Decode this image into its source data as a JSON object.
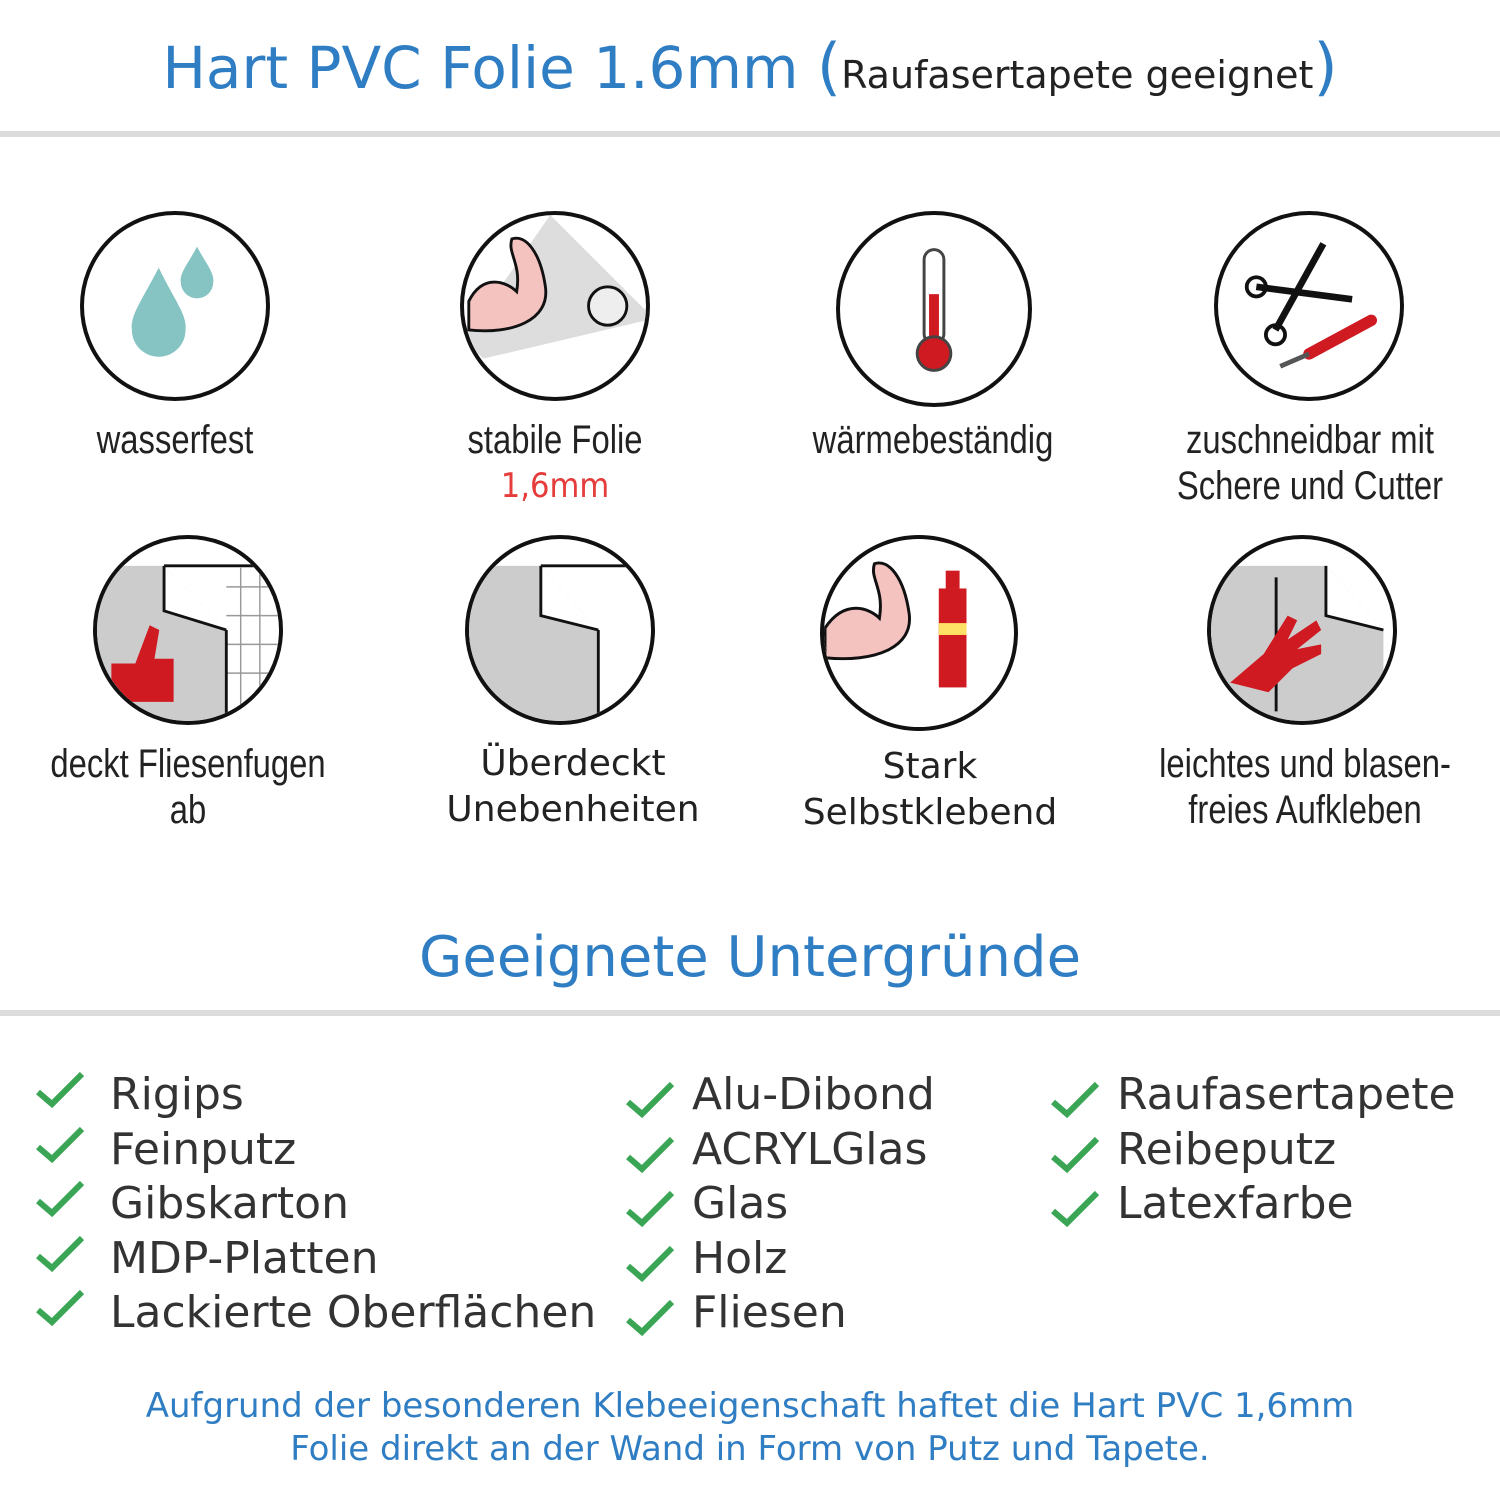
{
  "header": {
    "title": "Hart PVC Folie 1.6mm",
    "open_paren": "(",
    "subtitle": "Raufasertapete geeignet",
    "close_paren": ")"
  },
  "features": [
    {
      "icon": "water-drops-icon",
      "label": "wasserfest"
    },
    {
      "icon": "strong-arm-foil-icon",
      "label": "stabile Folie",
      "highlight": "1,6mm"
    },
    {
      "icon": "thermometer-icon",
      "label": "wärmebeständig"
    },
    {
      "icon": "scissors-cutter-icon",
      "label_line1": "zuschneidbar mit",
      "label_line2": "Schere und Cutter"
    },
    {
      "icon": "tile-cover-thumb-icon",
      "label": "deckt Fliesenfugen ab"
    },
    {
      "icon": "foil-peel-icon",
      "label_line1": "Überdeckt",
      "label_line2": "Unebenheiten"
    },
    {
      "icon": "strong-arm-glue-icon",
      "label_line1": "Stark",
      "label_line2": "Selbstklebend"
    },
    {
      "icon": "hand-smooth-icon",
      "label_line1": "leichtes und blasen-",
      "label_line2": "freies Aufkleben"
    }
  ],
  "surfaces": {
    "heading": "Geeignete Untergründe",
    "col1": [
      "Rigips",
      "Feinputz",
      "Gibskarton",
      "MDP-Platten",
      "Lackierte Oberflächen"
    ],
    "col2": [
      "Alu-Dibond",
      "ACRYLGlas",
      "Glas",
      "Holz",
      "Fliesen"
    ],
    "col3": [
      "Raufasertapete",
      "Reibeputz",
      "Latexfarbe"
    ]
  },
  "footer": {
    "line1": "Aufgrund der besonderen Klebeeigenschaft haftet die Hart PVC 1,6mm",
    "line2": "Folie direkt an der Wand in Form von Putz und Tapete."
  },
  "colors": {
    "accent": "#2f7dc3",
    "check": "#3aa655",
    "highlight": "#e53c3c",
    "icon_red": "#d01a22",
    "water": "#86c4c4"
  }
}
